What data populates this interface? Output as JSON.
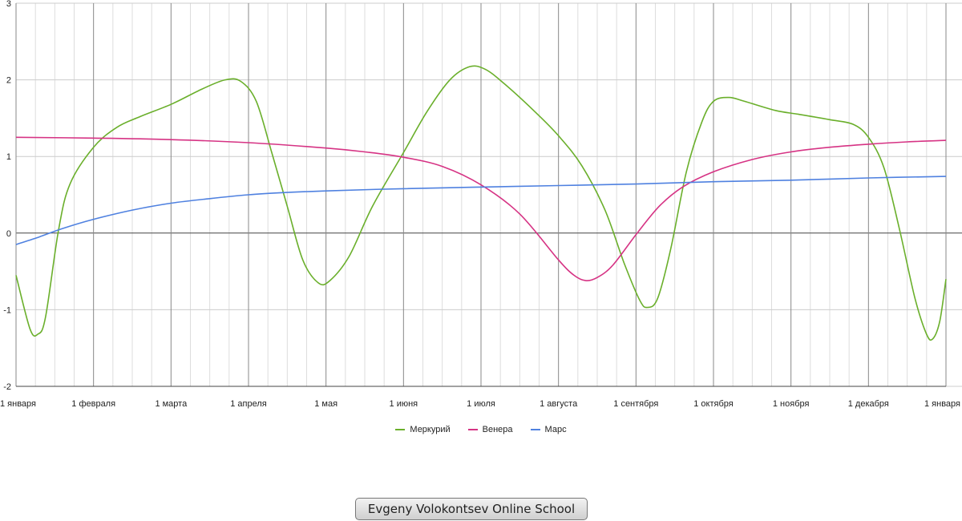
{
  "chart_data": {
    "type": "line",
    "x_tick_labels": [
      "1 января",
      "1 февраля",
      "1 марта",
      "1 апреля",
      "1 мая",
      "1 июня",
      "1 июля",
      "1 августа",
      "1 сентября",
      "1 октября",
      "1 ноября",
      "1 декабря",
      "1 января"
    ],
    "y_ticks": [
      3,
      2,
      1,
      0,
      -1,
      -2
    ],
    "ylim": [
      -2,
      3
    ],
    "grid": true,
    "legend_position": "bottom",
    "series": [
      {
        "name": "Меркурий",
        "color": "#6aaf2b",
        "points": [
          [
            0,
            -0.55
          ],
          [
            0.18,
            -1.25
          ],
          [
            0.28,
            -1.32
          ],
          [
            0.38,
            -1.1
          ],
          [
            0.55,
            0.05
          ],
          [
            0.7,
            0.65
          ],
          [
            1.0,
            1.12
          ],
          [
            1.3,
            1.38
          ],
          [
            1.6,
            1.52
          ],
          [
            2.0,
            1.68
          ],
          [
            2.4,
            1.88
          ],
          [
            2.7,
            2.0
          ],
          [
            2.9,
            1.98
          ],
          [
            3.1,
            1.72
          ],
          [
            3.3,
            1.05
          ],
          [
            3.5,
            0.35
          ],
          [
            3.7,
            -0.35
          ],
          [
            3.9,
            -0.65
          ],
          [
            4.05,
            -0.62
          ],
          [
            4.3,
            -0.3
          ],
          [
            4.6,
            0.35
          ],
          [
            5.0,
            1.05
          ],
          [
            5.3,
            1.58
          ],
          [
            5.6,
            2.0
          ],
          [
            5.85,
            2.17
          ],
          [
            6.05,
            2.14
          ],
          [
            6.3,
            1.95
          ],
          [
            6.7,
            1.58
          ],
          [
            7.0,
            1.27
          ],
          [
            7.3,
            0.88
          ],
          [
            7.6,
            0.3
          ],
          [
            7.85,
            -0.4
          ],
          [
            8.05,
            -0.88
          ],
          [
            8.15,
            -0.97
          ],
          [
            8.28,
            -0.85
          ],
          [
            8.45,
            -0.2
          ],
          [
            8.65,
            0.8
          ],
          [
            8.85,
            1.45
          ],
          [
            9.0,
            1.72
          ],
          [
            9.2,
            1.77
          ],
          [
            9.4,
            1.72
          ],
          [
            9.8,
            1.6
          ],
          [
            10.1,
            1.55
          ],
          [
            10.5,
            1.48
          ],
          [
            10.8,
            1.42
          ],
          [
            11.0,
            1.25
          ],
          [
            11.2,
            0.85
          ],
          [
            11.4,
            0.05
          ],
          [
            11.6,
            -0.85
          ],
          [
            11.75,
            -1.32
          ],
          [
            11.83,
            -1.38
          ],
          [
            11.92,
            -1.15
          ],
          [
            12.0,
            -0.6
          ]
        ]
      },
      {
        "name": "Венера",
        "color": "#d63384",
        "points": [
          [
            0,
            1.25
          ],
          [
            1.0,
            1.24
          ],
          [
            2.0,
            1.22
          ],
          [
            3.0,
            1.18
          ],
          [
            4.0,
            1.11
          ],
          [
            4.5,
            1.06
          ],
          [
            5.0,
            0.99
          ],
          [
            5.5,
            0.87
          ],
          [
            6.0,
            0.63
          ],
          [
            6.5,
            0.25
          ],
          [
            7.0,
            -0.35
          ],
          [
            7.2,
            -0.55
          ],
          [
            7.35,
            -0.62
          ],
          [
            7.5,
            -0.58
          ],
          [
            7.7,
            -0.42
          ],
          [
            8.0,
            -0.02
          ],
          [
            8.3,
            0.35
          ],
          [
            8.6,
            0.6
          ],
          [
            9.0,
            0.8
          ],
          [
            9.5,
            0.96
          ],
          [
            10.0,
            1.06
          ],
          [
            10.5,
            1.12
          ],
          [
            11.0,
            1.16
          ],
          [
            11.5,
            1.19
          ],
          [
            12.0,
            1.21
          ]
        ]
      },
      {
        "name": "Марс",
        "color": "#4f81e0",
        "points": [
          [
            0,
            -0.15
          ],
          [
            0.3,
            -0.05
          ],
          [
            0.6,
            0.06
          ],
          [
            1.0,
            0.18
          ],
          [
            1.5,
            0.3
          ],
          [
            2.0,
            0.39
          ],
          [
            2.5,
            0.45
          ],
          [
            3.0,
            0.5
          ],
          [
            3.5,
            0.53
          ],
          [
            4.0,
            0.55
          ],
          [
            5.0,
            0.58
          ],
          [
            6.0,
            0.6
          ],
          [
            7.0,
            0.62
          ],
          [
            8.0,
            0.64
          ],
          [
            9.0,
            0.67
          ],
          [
            10.0,
            0.69
          ],
          [
            11.0,
            0.72
          ],
          [
            12.0,
            0.74
          ]
        ]
      }
    ]
  },
  "watermark": "Evgeny Volokontsev Online School"
}
